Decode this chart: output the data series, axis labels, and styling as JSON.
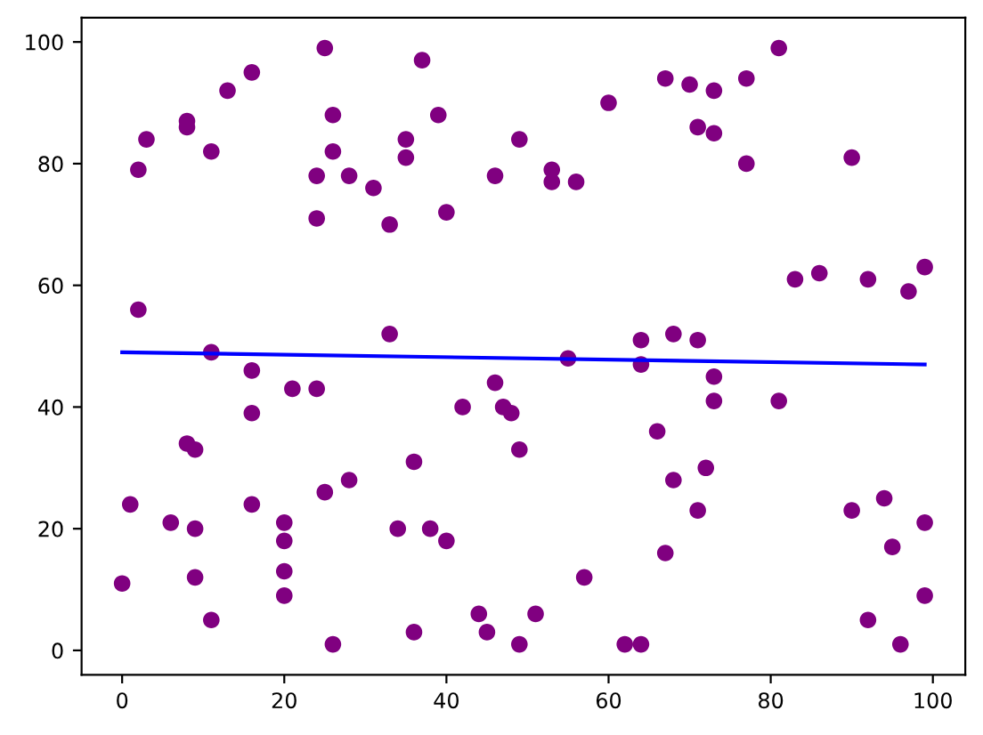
{
  "chart_data": {
    "type": "scatter",
    "grid": false,
    "xlim": [
      -5,
      104
    ],
    "ylim": [
      -4,
      104
    ],
    "xticks": [
      0,
      20,
      40,
      60,
      80,
      100
    ],
    "yticks": [
      0,
      20,
      40,
      60,
      80,
      100
    ],
    "series": [
      {
        "color": "#800080",
        "marker": "circle",
        "x": [
          0,
          1,
          2,
          2,
          3,
          6,
          8,
          8,
          8,
          9,
          9,
          9,
          11,
          11,
          11,
          13,
          16,
          16,
          16,
          16,
          20,
          20,
          20,
          20,
          21,
          24,
          24,
          24,
          25,
          25,
          26,
          26,
          26,
          28,
          28,
          31,
          33,
          33,
          34,
          35,
          35,
          36,
          36,
          37,
          38,
          39,
          40,
          40,
          42,
          44,
          45,
          46,
          46,
          47,
          48,
          49,
          49,
          49,
          51,
          53,
          53,
          55,
          56,
          57,
          60,
          62,
          64,
          64,
          64,
          66,
          67,
          67,
          68,
          68,
          70,
          71,
          71,
          71,
          72,
          73,
          73,
          73,
          73,
          77,
          77,
          81,
          81,
          83,
          86,
          90,
          90,
          92,
          92,
          94,
          95,
          96,
          97,
          99,
          99,
          99
        ],
        "values": [
          11,
          24,
          79,
          56,
          84,
          21,
          87,
          86,
          34,
          33,
          20,
          12,
          82,
          49,
          5,
          92,
          95,
          46,
          39,
          24,
          21,
          18,
          13,
          9,
          43,
          43,
          78,
          71,
          99,
          26,
          88,
          82,
          1,
          78,
          28,
          76,
          70,
          52,
          20,
          84,
          81,
          31,
          3,
          97,
          20,
          88,
          72,
          18,
          40,
          6,
          3,
          78,
          44,
          40,
          39,
          84,
          33,
          1,
          6,
          79,
          77,
          48,
          77,
          12,
          90,
          1,
          51,
          47,
          1,
          36,
          94,
          16,
          52,
          28,
          93,
          86,
          51,
          23,
          30,
          92,
          85,
          45,
          41,
          94,
          80,
          99,
          41,
          61,
          62,
          81,
          23,
          61,
          5,
          25,
          17,
          1,
          59,
          63,
          21,
          9
        ]
      },
      {
        "type": "line",
        "color": "#0000ff",
        "line_style": "solid",
        "marker": "none",
        "x": [
          0,
          99
        ],
        "values": [
          49,
          47
        ]
      }
    ]
  }
}
